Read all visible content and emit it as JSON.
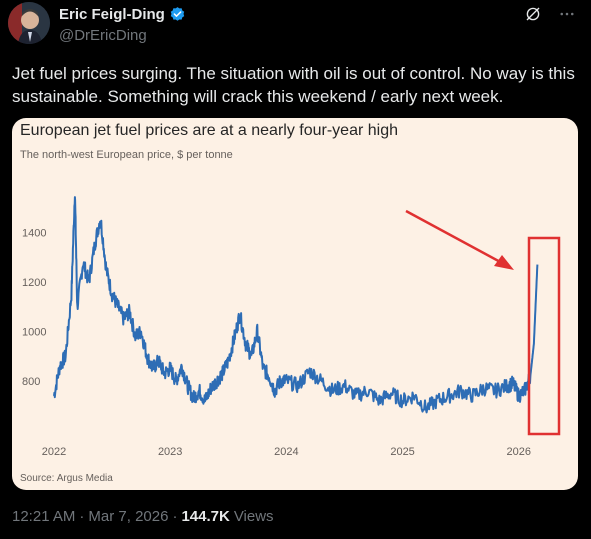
{
  "author": {
    "name": "Eric Feigl-Ding",
    "handle": "@DrEricDing"
  },
  "tweet": {
    "text": "Jet fuel prices surging. The situation with oil is out of control. No way is this sustainable. Something will crack this weekend / early next week."
  },
  "card": {
    "title": "European jet fuel prices are at a nearly four-year high",
    "subtitle": "The north-west European price, $ per tonne",
    "source": "Source: Argus Media"
  },
  "meta": {
    "time": "12:21 AM",
    "date": "Mar 7, 2026",
    "views_count": "144.7K",
    "views_label": "Views"
  },
  "icons": {
    "verified": "verified-badge-icon",
    "grok": "grok-icon",
    "more": "more-icon"
  },
  "colors": {
    "line": "#2e6db5",
    "highlight": "#e03131",
    "card_bg": "#fdf1e5",
    "verified": "#1d9bf0"
  },
  "chart_data": {
    "type": "line",
    "title": "European jet fuel prices are at a nearly four-year high",
    "subtitle": "The north-west European price, $ per tonne",
    "xlabel": "",
    "ylabel": "",
    "x_ticks": [
      "2022",
      "2023",
      "2024",
      "2025",
      "2026"
    ],
    "y_ticks": [
      800,
      1000,
      1200,
      1400
    ],
    "ylim": [
      650,
      1600
    ],
    "xlim": [
      2022.0,
      2026.2
    ],
    "grid": false,
    "x": [
      2022.0,
      2022.05,
      2022.1,
      2022.15,
      2022.18,
      2022.2,
      2022.25,
      2022.3,
      2022.35,
      2022.4,
      2022.45,
      2022.5,
      2022.55,
      2022.6,
      2022.65,
      2022.7,
      2022.75,
      2022.8,
      2022.85,
      2022.9,
      2022.95,
      2023.0,
      2023.05,
      2023.1,
      2023.15,
      2023.2,
      2023.25,
      2023.3,
      2023.35,
      2023.4,
      2023.45,
      2023.5,
      2023.55,
      2023.6,
      2023.65,
      2023.7,
      2023.75,
      2023.8,
      2023.85,
      2023.9,
      2023.95,
      2024.0,
      2024.1,
      2024.2,
      2024.3,
      2024.4,
      2024.5,
      2024.6,
      2024.7,
      2024.8,
      2024.9,
      2025.0,
      2025.1,
      2025.2,
      2025.3,
      2025.4,
      2025.5,
      2025.6,
      2025.7,
      2025.8,
      2025.9,
      2025.95,
      2026.0,
      2026.05,
      2026.1,
      2026.13,
      2026.16
    ],
    "values": [
      740,
      860,
      900,
      1150,
      1570,
      1100,
      1280,
      1200,
      1350,
      1460,
      1250,
      1150,
      1100,
      1050,
      1080,
      980,
      1000,
      900,
      850,
      880,
      830,
      850,
      800,
      860,
      780,
      730,
      760,
      720,
      770,
      800,
      830,
      880,
      970,
      1070,
      950,
      900,
      1000,
      850,
      820,
      760,
      800,
      800,
      780,
      840,
      800,
      760,
      780,
      740,
      760,
      720,
      750,
      720,
      740,
      690,
      720,
      740,
      760,
      740,
      770,
      760,
      780,
      790,
      740,
      760,
      820,
      950,
      1270
    ],
    "annotations": [
      "red-arrow",
      "red-highlight-box"
    ]
  }
}
